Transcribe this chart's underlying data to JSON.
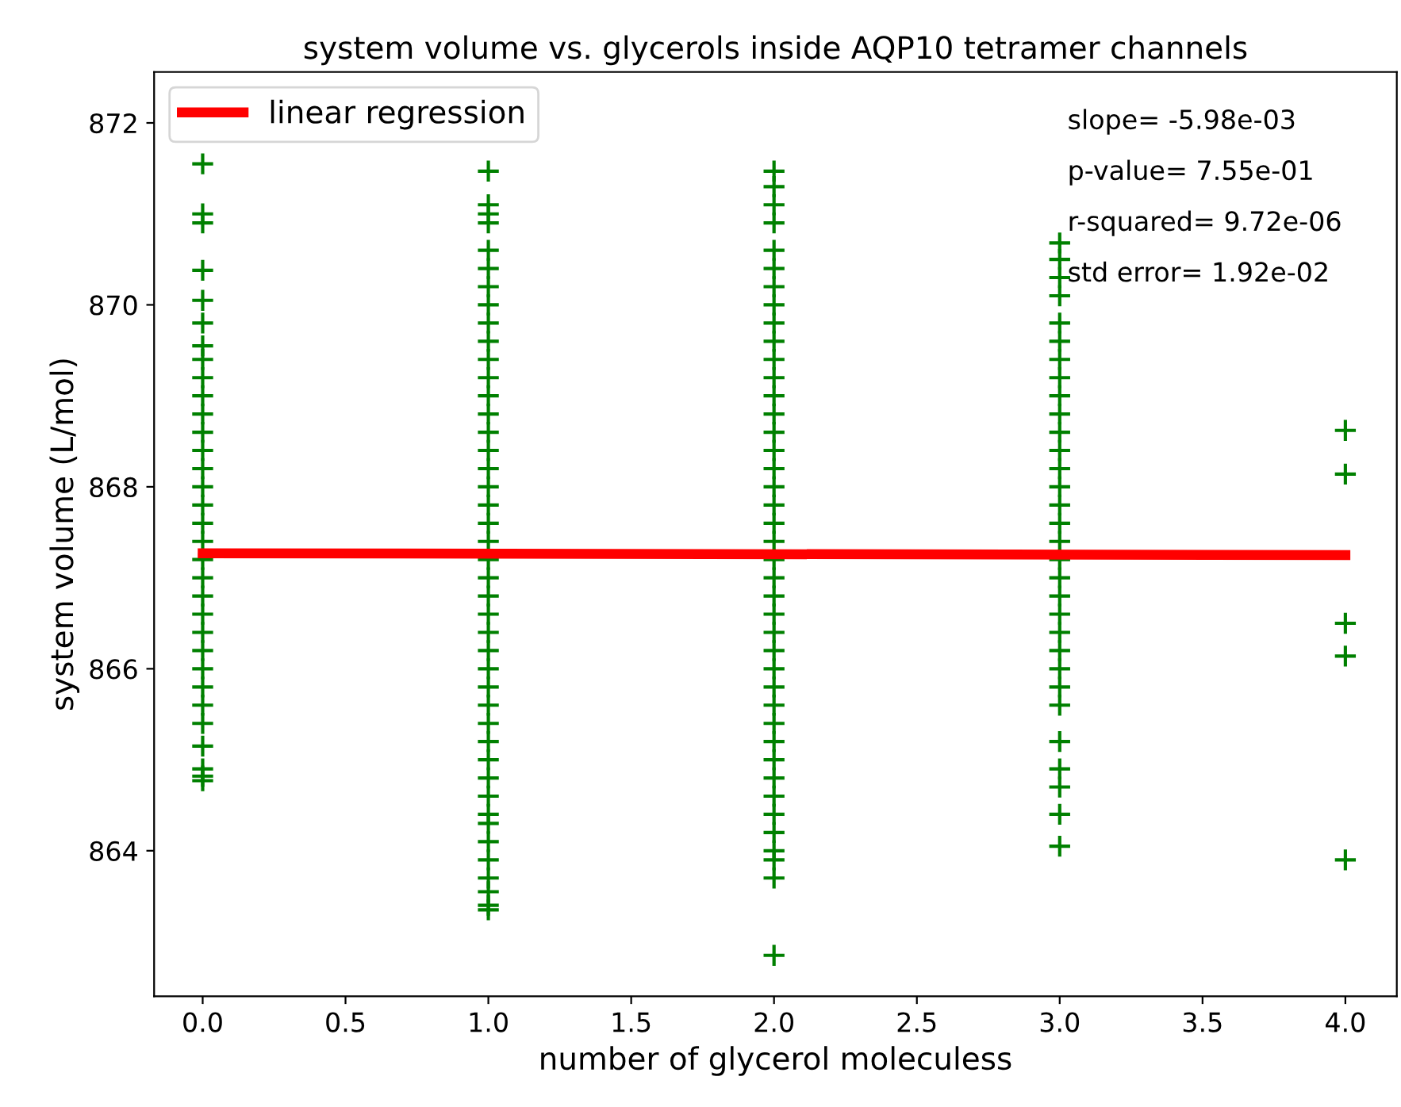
{
  "chart_data": {
    "type": "scatter",
    "title": "system volume vs. glycerols inside AQP10 tetramer channels",
    "xlabel": "number of glycerol moleculess",
    "ylabel": "system volume (L/mol)",
    "xlim": [
      -0.17,
      4.18
    ],
    "ylim": [
      862.4,
      872.56
    ],
    "xticks": [
      {
        "value": 0,
        "label": "0.0"
      },
      {
        "value": 0.5,
        "label": "0.5"
      },
      {
        "value": 1,
        "label": "1.0"
      },
      {
        "value": 1.5,
        "label": "1.5"
      },
      {
        "value": 2,
        "label": "2.0"
      },
      {
        "value": 2.5,
        "label": "2.5"
      },
      {
        "value": 3,
        "label": "3.0"
      },
      {
        "value": 3.5,
        "label": "3.5"
      },
      {
        "value": 4,
        "label": "4.0"
      }
    ],
    "yticks": [
      864,
      866,
      868,
      870,
      872
    ],
    "grid": false,
    "legend": "top left",
    "annotations": [
      "slope= -5.98e-03",
      "p-value= 7.55e-01",
      "r-squared= 9.72e-06",
      "std error= 1.92e-02"
    ],
    "series": [
      {
        "color": "#008000",
        "marker": "cross",
        "x": [
          0,
          0,
          0,
          0,
          0,
          0,
          0,
          0,
          0,
          0,
          0,
          0,
          0,
          0,
          0,
          0,
          0,
          0,
          0,
          0,
          0,
          0,
          0,
          0,
          0,
          0,
          0,
          0,
          0,
          0,
          0,
          0,
          1,
          1,
          1,
          1,
          1,
          1,
          1,
          1,
          1,
          1,
          1,
          1,
          1,
          1,
          1,
          1,
          1,
          1,
          1,
          1,
          1,
          1,
          1,
          1,
          1,
          1,
          1,
          1,
          1,
          1,
          1,
          1,
          1,
          1,
          1,
          1,
          1,
          1,
          1,
          1,
          1,
          1,
          1,
          2,
          2,
          2,
          2,
          2,
          2,
          2,
          2,
          2,
          2,
          2,
          2,
          2,
          2,
          2,
          2,
          2,
          2,
          2,
          2,
          2,
          2,
          2,
          2,
          2,
          2,
          2,
          2,
          2,
          2,
          2,
          2,
          2,
          2,
          2,
          2,
          2,
          2,
          2,
          2,
          2,
          3,
          3,
          3,
          3,
          3,
          3,
          3,
          3,
          3,
          3,
          3,
          3,
          3,
          3,
          3,
          3,
          3,
          3,
          3,
          3,
          3,
          3,
          3,
          3,
          3,
          3,
          3,
          3,
          3,
          3,
          3,
          4,
          4,
          4,
          4,
          4
        ],
        "values": [
          871.55,
          871.0,
          870.9,
          870.38,
          870.05,
          869.8,
          869.55,
          869.4,
          869.2,
          869.0,
          868.8,
          868.6,
          868.4,
          868.2,
          868.0,
          867.8,
          867.6,
          867.4,
          867.2,
          867.0,
          866.8,
          866.6,
          866.4,
          866.2,
          866.0,
          865.8,
          865.6,
          865.4,
          865.15,
          864.9,
          864.82,
          864.77,
          871.47,
          871.1,
          871.0,
          870.9,
          870.6,
          870.4,
          870.2,
          870.0,
          869.8,
          869.6,
          869.4,
          869.2,
          869.0,
          868.8,
          868.6,
          868.4,
          868.2,
          868.0,
          867.8,
          867.6,
          867.4,
          867.2,
          867.0,
          866.8,
          866.6,
          866.4,
          866.2,
          866.0,
          865.8,
          865.6,
          865.4,
          865.2,
          865.0,
          864.8,
          864.6,
          864.4,
          864.3,
          864.1,
          863.9,
          863.7,
          863.55,
          863.4,
          863.35,
          871.47,
          871.3,
          871.1,
          870.9,
          870.6,
          870.4,
          870.2,
          870.0,
          869.8,
          869.6,
          869.4,
          869.2,
          869.0,
          868.8,
          868.6,
          868.4,
          868.2,
          868.0,
          867.8,
          867.6,
          867.4,
          867.2,
          867.0,
          866.8,
          866.6,
          866.4,
          866.2,
          866.0,
          865.8,
          865.6,
          865.4,
          865.2,
          865.0,
          864.8,
          864.6,
          864.4,
          864.2,
          864.0,
          863.9,
          863.7,
          862.85,
          870.68,
          870.5,
          870.3,
          870.1,
          869.8,
          869.6,
          869.4,
          869.2,
          869.0,
          868.8,
          868.6,
          868.4,
          868.2,
          868.0,
          867.8,
          867.6,
          867.4,
          867.2,
          867.0,
          866.8,
          866.6,
          866.4,
          866.2,
          866.0,
          865.8,
          865.6,
          865.2,
          864.9,
          864.7,
          864.4,
          864.05,
          868.62,
          868.14,
          866.5,
          866.14,
          863.9
        ]
      },
      {
        "type": "line",
        "name": "linear regression",
        "color": "#ff0000",
        "line_style": "solid",
        "marker": "none",
        "x": [
          0,
          4
        ],
        "values": [
          867.27,
          867.25
        ]
      }
    ]
  }
}
